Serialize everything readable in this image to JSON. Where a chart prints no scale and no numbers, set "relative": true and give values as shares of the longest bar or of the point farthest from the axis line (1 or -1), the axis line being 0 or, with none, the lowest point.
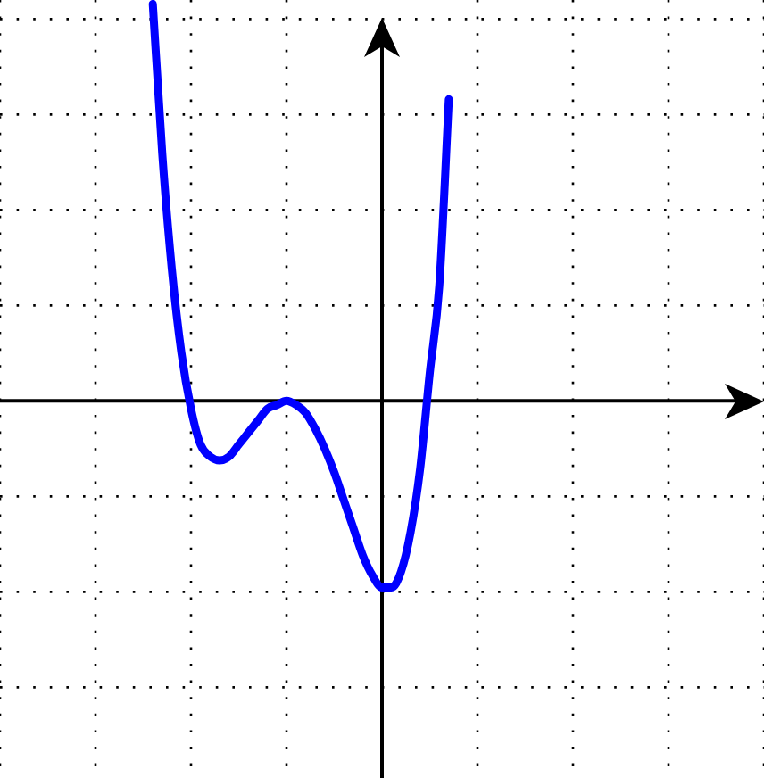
{
  "chart_data": {
    "type": "line",
    "relative": true,
    "grid": true,
    "legend": false,
    "marker": "none",
    "line_style": "solid",
    "categories": [
      null,
      null,
      null,
      null,
      null,
      null,
      null,
      null,
      null,
      null,
      null,
      null,
      null,
      null,
      null,
      null,
      null,
      null,
      null,
      null,
      null,
      null,
      null,
      null,
      null,
      null,
      null,
      null,
      null,
      null,
      null,
      null,
      null,
      null,
      null,
      null,
      null,
      null,
      null,
      null,
      null,
      null,
      null,
      null,
      null,
      null,
      null,
      null,
      null,
      null,
      null,
      null,
      null,
      null,
      null,
      null,
      null,
      null,
      null,
      null,
      null,
      null,
      null,
      null,
      null,
      null,
      null,
      null,
      null,
      null,
      null,
      null,
      null,
      null,
      null,
      null,
      null,
      null,
      null,
      null,
      null
    ],
    "series": [
      {
        "color": "#0000ff",
        "values": [
          null,
          null,
          null,
          null,
          null,
          null,
          null,
          null,
          null,
          null,
          null,
          null,
          null,
          null,
          null,
          null,
          1,
          0.62,
          0.33,
          0.12,
          -0.02,
          -0.11,
          -0.14,
          -0.15,
          -0.14,
          -0.11,
          -0.08,
          -0.05,
          -0.02,
          -0.01,
          0,
          -0.01,
          -0.03,
          -0.07,
          -0.12,
          -0.18,
          -0.25,
          -0.32,
          -0.39,
          -0.44,
          -0.47,
          -0.47,
          -0.43,
          -0.33,
          -0.17,
          0.07,
          0.29,
          0.76,
          null,
          null,
          null,
          null,
          null,
          null,
          null,
          null,
          null,
          null,
          null,
          null,
          null,
          null,
          null,
          null,
          null,
          null,
          null,
          null,
          null,
          null,
          null,
          null,
          null,
          null,
          null,
          null,
          null,
          null,
          null,
          null,
          null
        ]
      }
    ]
  }
}
